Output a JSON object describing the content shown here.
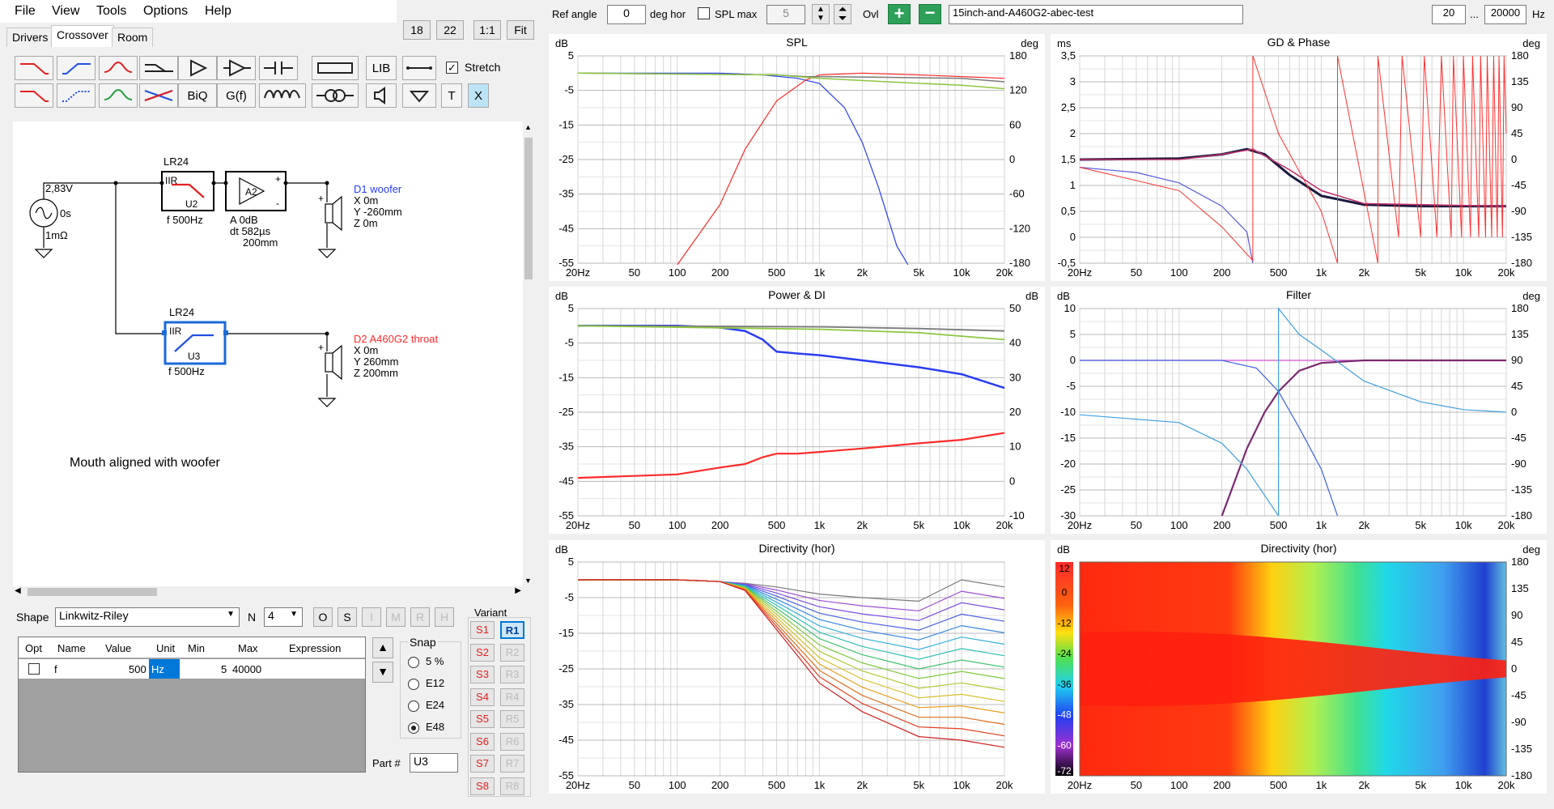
{
  "menu": [
    "File",
    "View",
    "Tools",
    "Options",
    "Help"
  ],
  "tabs": [
    "Drivers",
    "Crossover",
    "Room"
  ],
  "zoom_buttons": [
    "18",
    "22",
    "1:1",
    "Fit"
  ],
  "toolbar": {
    "lib": "LIB",
    "biq": "BiQ",
    "gf": "G(f)",
    "t": "T",
    "x": "X",
    "stretch": "Stretch"
  },
  "top_bar": {
    "ref_angle_label": "Ref angle",
    "ref_angle_value": "0",
    "deg_hor": "deg hor",
    "spl_max_label": "SPL max",
    "spl_max_value": "5",
    "ovl": "Ovl",
    "project": "15inch-and-A460G2-abec-test",
    "freq_min": "20",
    "dots": "...",
    "freq_max": "20000",
    "hz": "Hz"
  },
  "schematic": {
    "source_v": "2,83V",
    "source_t": "0s",
    "source_r": "1mΩ",
    "u2_type": "LR24",
    "u2_iir": "IIR",
    "u2_name": "U2",
    "u2_f": "f    500Hz",
    "a2_name": "A2",
    "a2_a": "A   0dB",
    "a2_dt": "dt  582µs",
    "a2_dist": "200mm",
    "d1_name": "D1 woofer",
    "d1_x": "X 0m",
    "d1_y": "Y -260mm",
    "d1_z": "Z 0m",
    "u3_type": "LR24",
    "u3_iir": "IIR",
    "u3_name": "U3",
    "u3_f": "f    500Hz",
    "d2_name": "D2 A460G2 throat",
    "d2_x": "X 0m",
    "d2_y": "Y 260mm",
    "d2_z": "Z 200mm",
    "note": "Mouth aligned with woofer",
    "plus": "+",
    "minus": "-"
  },
  "shape": {
    "label": "Shape",
    "value": "Linkwitz-Riley",
    "n_label": "N",
    "n_value": "4",
    "buttons": [
      "O",
      "S",
      "I",
      "M",
      "R",
      "H"
    ]
  },
  "param_table": {
    "headers": [
      "Opt",
      "Name",
      "Value",
      "Unit",
      "Min",
      "Max",
      "Expression"
    ],
    "row": {
      "name": "f",
      "value": "500",
      "unit": "Hz",
      "min": "5",
      "max": "40000",
      "expression": ""
    }
  },
  "snap": {
    "label": "Snap",
    "options": [
      "5 %",
      "E12",
      "E24",
      "E48"
    ],
    "selected": "E48"
  },
  "part": {
    "label": "Part #",
    "value": "U3"
  },
  "variant": {
    "label": "Variant",
    "s": [
      "S1",
      "S2",
      "S3",
      "S4",
      "S5",
      "S6",
      "S7",
      "S8"
    ],
    "r": [
      "R1",
      "R2",
      "R3",
      "R4",
      "R5",
      "R6",
      "R7",
      "R8"
    ]
  },
  "x_ticks": [
    "20Hz",
    "50",
    "100",
    "200",
    "500",
    "1k",
    "2k",
    "5k",
    "10k",
    "20k"
  ],
  "graphs": {
    "spl": {
      "title": "SPL",
      "lunit": "dB",
      "runit": "deg",
      "left": [
        "5",
        "-5",
        "-15",
        "-25",
        "-35",
        "-45",
        "-55"
      ],
      "right": [
        "180",
        "120",
        "60",
        "0",
        "-60",
        "-120",
        "-180"
      ]
    },
    "gd": {
      "title": "GD & Phase",
      "lunit": "ms",
      "runit": "deg",
      "left": [
        "3,5",
        "3",
        "2,5",
        "2",
        "1,5",
        "1",
        "0,5",
        "0",
        "-0,5"
      ],
      "right": [
        "180",
        "135",
        "90",
        "45",
        "0",
        "-45",
        "-90",
        "-135",
        "-180"
      ]
    },
    "power": {
      "title": "Power & DI",
      "lunit": "dB",
      "runit": "dB",
      "left": [
        "5",
        "-5",
        "-15",
        "-25",
        "-35",
        "-45",
        "-55"
      ],
      "right": [
        "50",
        "40",
        "30",
        "20",
        "10",
        "0",
        "-10"
      ]
    },
    "filter": {
      "title": "Filter",
      "lunit": "dB",
      "runit": "deg",
      "left": [
        "10",
        "5",
        "0",
        "-5",
        "-10",
        "-15",
        "-20",
        "-25",
        "-30"
      ],
      "right": [
        "180",
        "135",
        "90",
        "45",
        "0",
        "-45",
        "-90",
        "-135",
        "-180"
      ]
    },
    "dir": {
      "title": "Directivity (hor)",
      "lunit": "dB",
      "left": [
        "5",
        "-5",
        "-15",
        "-25",
        "-35",
        "-45",
        "-55"
      ]
    },
    "dirmap": {
      "title": "Directivity (hor)",
      "lunit": "dB",
      "runit": "deg",
      "scale": [
        "12",
        "0",
        "-12",
        "-24",
        "-36",
        "-48",
        "-60",
        "-72"
      ],
      "right": [
        "180",
        "135",
        "90",
        "45",
        "0",
        "-45",
        "-90",
        "-135",
        "-180"
      ]
    }
  },
  "colors": {
    "woofer": "#2a3ef0",
    "horn": "#ff2a2a",
    "sum": "#7a7a7a",
    "green": "#8dc63f",
    "accent": "#0078d7"
  }
}
